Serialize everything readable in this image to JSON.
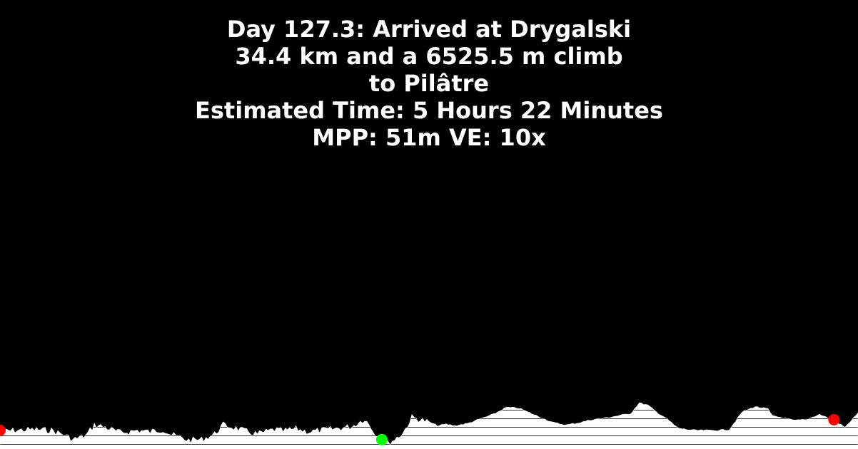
{
  "title_lines": [
    "Day 127.3: Arrived at Drygalski",
    "34.4 km and a 6525.5 m climb",
    "to Pilâtre",
    "Estimated Time: 5 Hours 22 Minutes",
    "MPP: 51m VE: 10x"
  ],
  "colors": {
    "background": "#000000",
    "terrain": "#ffffff",
    "hatch": "#000000",
    "start_marker": "#ff0000",
    "current_marker": "#00ff00",
    "end_marker": "#ff0000"
  },
  "chart_data": {
    "type": "area",
    "title": "Day 127.3: Arrived at Drygalski",
    "xlabel": "",
    "ylabel": "",
    "grid": false,
    "legend": "none",
    "xlim": [
      0,
      1
    ],
    "ylim": [
      0,
      1
    ],
    "x": [
      0.0,
      0.02,
      0.04,
      0.06,
      0.075,
      0.085,
      0.1,
      0.11,
      0.12,
      0.13,
      0.14,
      0.15,
      0.16,
      0.175,
      0.19,
      0.2,
      0.22,
      0.235,
      0.25,
      0.26,
      0.275,
      0.285,
      0.3,
      0.32,
      0.33,
      0.345,
      0.36,
      0.375,
      0.39,
      0.41,
      0.425,
      0.44,
      0.445,
      0.452,
      0.46,
      0.47,
      0.48,
      0.49,
      0.5,
      0.51,
      0.52,
      0.53,
      0.545,
      0.56,
      0.575,
      0.59,
      0.605,
      0.615,
      0.63,
      0.645,
      0.66,
      0.675,
      0.69,
      0.705,
      0.72,
      0.735,
      0.745,
      0.755,
      0.765,
      0.775,
      0.79,
      0.8,
      0.81,
      0.82,
      0.835,
      0.85,
      0.865,
      0.88,
      0.895,
      0.9,
      0.91,
      0.925,
      0.94,
      0.955,
      0.97,
      0.985,
      1.0
    ],
    "series": [
      {
        "values": [
          0.16,
          0.17,
          0.18,
          0.17,
          0.11,
          0.05,
          0.1,
          0.24,
          0.22,
          0.18,
          0.14,
          0.15,
          0.17,
          0.15,
          0.18,
          0.11,
          0.04,
          0.05,
          0.12,
          0.24,
          0.2,
          0.16,
          0.12,
          0.18,
          0.16,
          0.19,
          0.15,
          0.17,
          0.19,
          0.22,
          0.32,
          0.09,
          0.04,
          0.0,
          0.05,
          0.14,
          0.34,
          0.31,
          0.28,
          0.23,
          0.25,
          0.23,
          0.26,
          0.32,
          0.38,
          0.47,
          0.46,
          0.41,
          0.34,
          0.27,
          0.24,
          0.27,
          0.31,
          0.33,
          0.36,
          0.39,
          0.53,
          0.5,
          0.41,
          0.34,
          0.2,
          0.18,
          0.17,
          0.17,
          0.17,
          0.18,
          0.41,
          0.48,
          0.45,
          0.36,
          0.34,
          0.3,
          0.31,
          0.38,
          0.31,
          0.21,
          0.4
        ]
      }
    ],
    "markers": [
      {
        "x": 0.0,
        "y": 0.16,
        "role": "start"
      },
      {
        "x": 0.445,
        "y": 0.04,
        "role": "current"
      },
      {
        "x": 0.972,
        "y": 0.3,
        "role": "end"
      }
    ]
  }
}
